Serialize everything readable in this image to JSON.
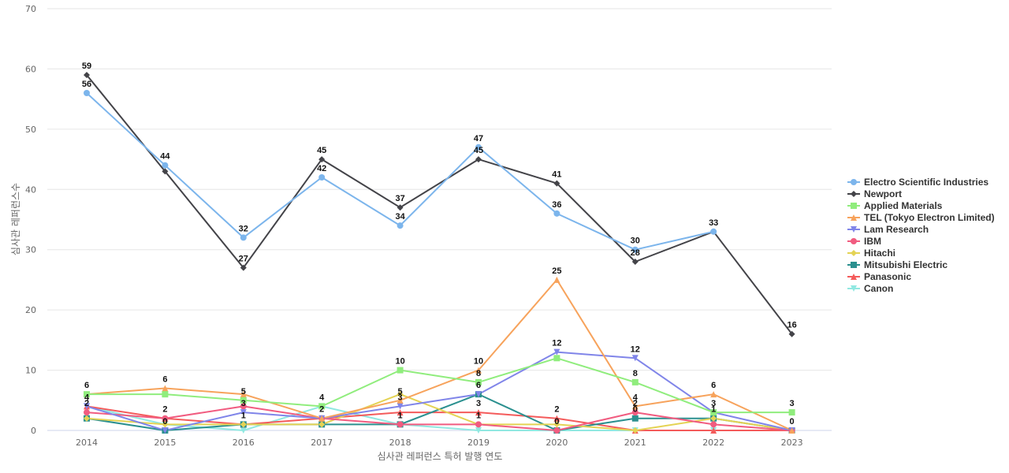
{
  "chart_data": {
    "type": "line",
    "title": "",
    "xlabel": "심사관 레퍼런스 특허 발행 연도",
    "ylabel": "심사관 레퍼런스수",
    "x": [
      "2014",
      "2015",
      "2016",
      "2017",
      "2018",
      "2019",
      "2020",
      "2021",
      "2022",
      "2023"
    ],
    "ylim": [
      0,
      70
    ],
    "yticks": [
      0,
      10,
      20,
      30,
      40,
      50,
      60,
      70
    ],
    "grid": true,
    "legend_position": "right",
    "series": [
      {
        "name": "Electro Scientific Industries",
        "color": "#7cb5ec",
        "marker": "circle",
        "values": [
          56,
          44,
          32,
          42,
          34,
          47,
          36,
          30,
          33,
          null
        ]
      },
      {
        "name": "Newport",
        "color": "#434348",
        "marker": "diamond",
        "values": [
          59,
          43,
          27,
          45,
          37,
          45,
          41,
          28,
          33,
          16
        ]
      },
      {
        "name": "Applied Materials",
        "color": "#90ed7d",
        "marker": "square",
        "values": [
          6,
          6,
          5,
          4,
          10,
          8,
          12,
          8,
          3,
          3
        ]
      },
      {
        "name": "TEL (Tokyo Electron Limited)",
        "color": "#f7a35c",
        "marker": "triangle",
        "values": [
          6,
          7,
          6,
          2,
          5,
          10,
          25,
          4,
          6,
          0
        ]
      },
      {
        "name": "Lam Research",
        "color": "#8085e9",
        "marker": "triangle-down",
        "values": [
          4,
          0,
          3,
          2,
          4,
          6,
          13,
          12,
          3,
          0
        ]
      },
      {
        "name": "IBM",
        "color": "#f15c80",
        "marker": "circle",
        "values": [
          3,
          2,
          4,
          2,
          1,
          1,
          0,
          3,
          1,
          0
        ]
      },
      {
        "name": "Hitachi",
        "color": "#e4d354",
        "marker": "diamond",
        "values": [
          2,
          1,
          1,
          1,
          6,
          1,
          1,
          0,
          2,
          0
        ]
      },
      {
        "name": "Mitsubishi Electric",
        "color": "#2b908f",
        "marker": "square",
        "values": [
          2,
          0,
          1,
          1,
          1,
          6,
          0,
          2,
          2,
          0
        ]
      },
      {
        "name": "Panasonic",
        "color": "#f45b5b",
        "marker": "triangle",
        "values": [
          4,
          2,
          1,
          2,
          3,
          3,
          2,
          0,
          0,
          0
        ]
      },
      {
        "name": "Canon",
        "color": "#91e8e1",
        "marker": "triangle-down",
        "values": [
          4,
          1,
          0,
          4,
          1,
          0,
          0,
          0,
          0,
          0
        ]
      }
    ],
    "data_labels": [
      {
        "series": 1,
        "index": 0,
        "text": "59"
      },
      {
        "series": 0,
        "index": 0,
        "text": "56"
      },
      {
        "series": 2,
        "index": 0,
        "text": "6"
      },
      {
        "series": 4,
        "index": 0,
        "text": "4"
      },
      {
        "series": 5,
        "index": 0,
        "text": "2"
      },
      {
        "series": 0,
        "index": 1,
        "text": "44"
      },
      {
        "series": 3,
        "index": 1,
        "text": "6"
      },
      {
        "series": 5,
        "index": 1,
        "text": "2"
      },
      {
        "series": 7,
        "index": 1,
        "text": "0"
      },
      {
        "series": 0,
        "index": 2,
        "text": "32"
      },
      {
        "series": 1,
        "index": 2,
        "text": "27"
      },
      {
        "series": 2,
        "index": 2,
        "text": "5"
      },
      {
        "series": 4,
        "index": 2,
        "text": "3"
      },
      {
        "series": 7,
        "index": 2,
        "text": "1"
      },
      {
        "series": 1,
        "index": 3,
        "text": "45"
      },
      {
        "series": 0,
        "index": 3,
        "text": "42"
      },
      {
        "series": 2,
        "index": 3,
        "text": "4"
      },
      {
        "series": 3,
        "index": 3,
        "text": "2"
      },
      {
        "series": 1,
        "index": 4,
        "text": "37"
      },
      {
        "series": 0,
        "index": 4,
        "text": "34"
      },
      {
        "series": 2,
        "index": 4,
        "text": "10"
      },
      {
        "series": 3,
        "index": 4,
        "text": "5"
      },
      {
        "series": 4,
        "index": 4,
        "text": "3"
      },
      {
        "series": 7,
        "index": 4,
        "text": "1"
      },
      {
        "series": 0,
        "index": 5,
        "text": "47"
      },
      {
        "series": 1,
        "index": 5,
        "text": "45"
      },
      {
        "series": 3,
        "index": 5,
        "text": "10"
      },
      {
        "series": 2,
        "index": 5,
        "text": "8"
      },
      {
        "series": 7,
        "index": 5,
        "text": "6"
      },
      {
        "series": 8,
        "index": 5,
        "text": "3"
      },
      {
        "series": 6,
        "index": 5,
        "text": "1"
      },
      {
        "series": 1,
        "index": 6,
        "text": "41"
      },
      {
        "series": 0,
        "index": 6,
        "text": "36"
      },
      {
        "series": 3,
        "index": 6,
        "text": "25"
      },
      {
        "series": 4,
        "index": 6,
        "text": "12"
      },
      {
        "series": 8,
        "index": 6,
        "text": "2"
      },
      {
        "series": 7,
        "index": 6,
        "text": "0"
      },
      {
        "series": 0,
        "index": 7,
        "text": "30"
      },
      {
        "series": 1,
        "index": 7,
        "text": "28"
      },
      {
        "series": 4,
        "index": 7,
        "text": "12"
      },
      {
        "series": 2,
        "index": 7,
        "text": "8"
      },
      {
        "series": 3,
        "index": 7,
        "text": "4"
      },
      {
        "series": 5,
        "index": 7,
        "text": "2"
      },
      {
        "series": 7,
        "index": 7,
        "text": "0"
      },
      {
        "series": 1,
        "index": 8,
        "text": "33"
      },
      {
        "series": 3,
        "index": 8,
        "text": "6"
      },
      {
        "series": 4,
        "index": 8,
        "text": "3"
      },
      {
        "series": 7,
        "index": 8,
        "text": "1"
      },
      {
        "series": 1,
        "index": 9,
        "text": "16"
      },
      {
        "series": 2,
        "index": 9,
        "text": "3"
      },
      {
        "series": 4,
        "index": 9,
        "text": "0"
      }
    ]
  }
}
